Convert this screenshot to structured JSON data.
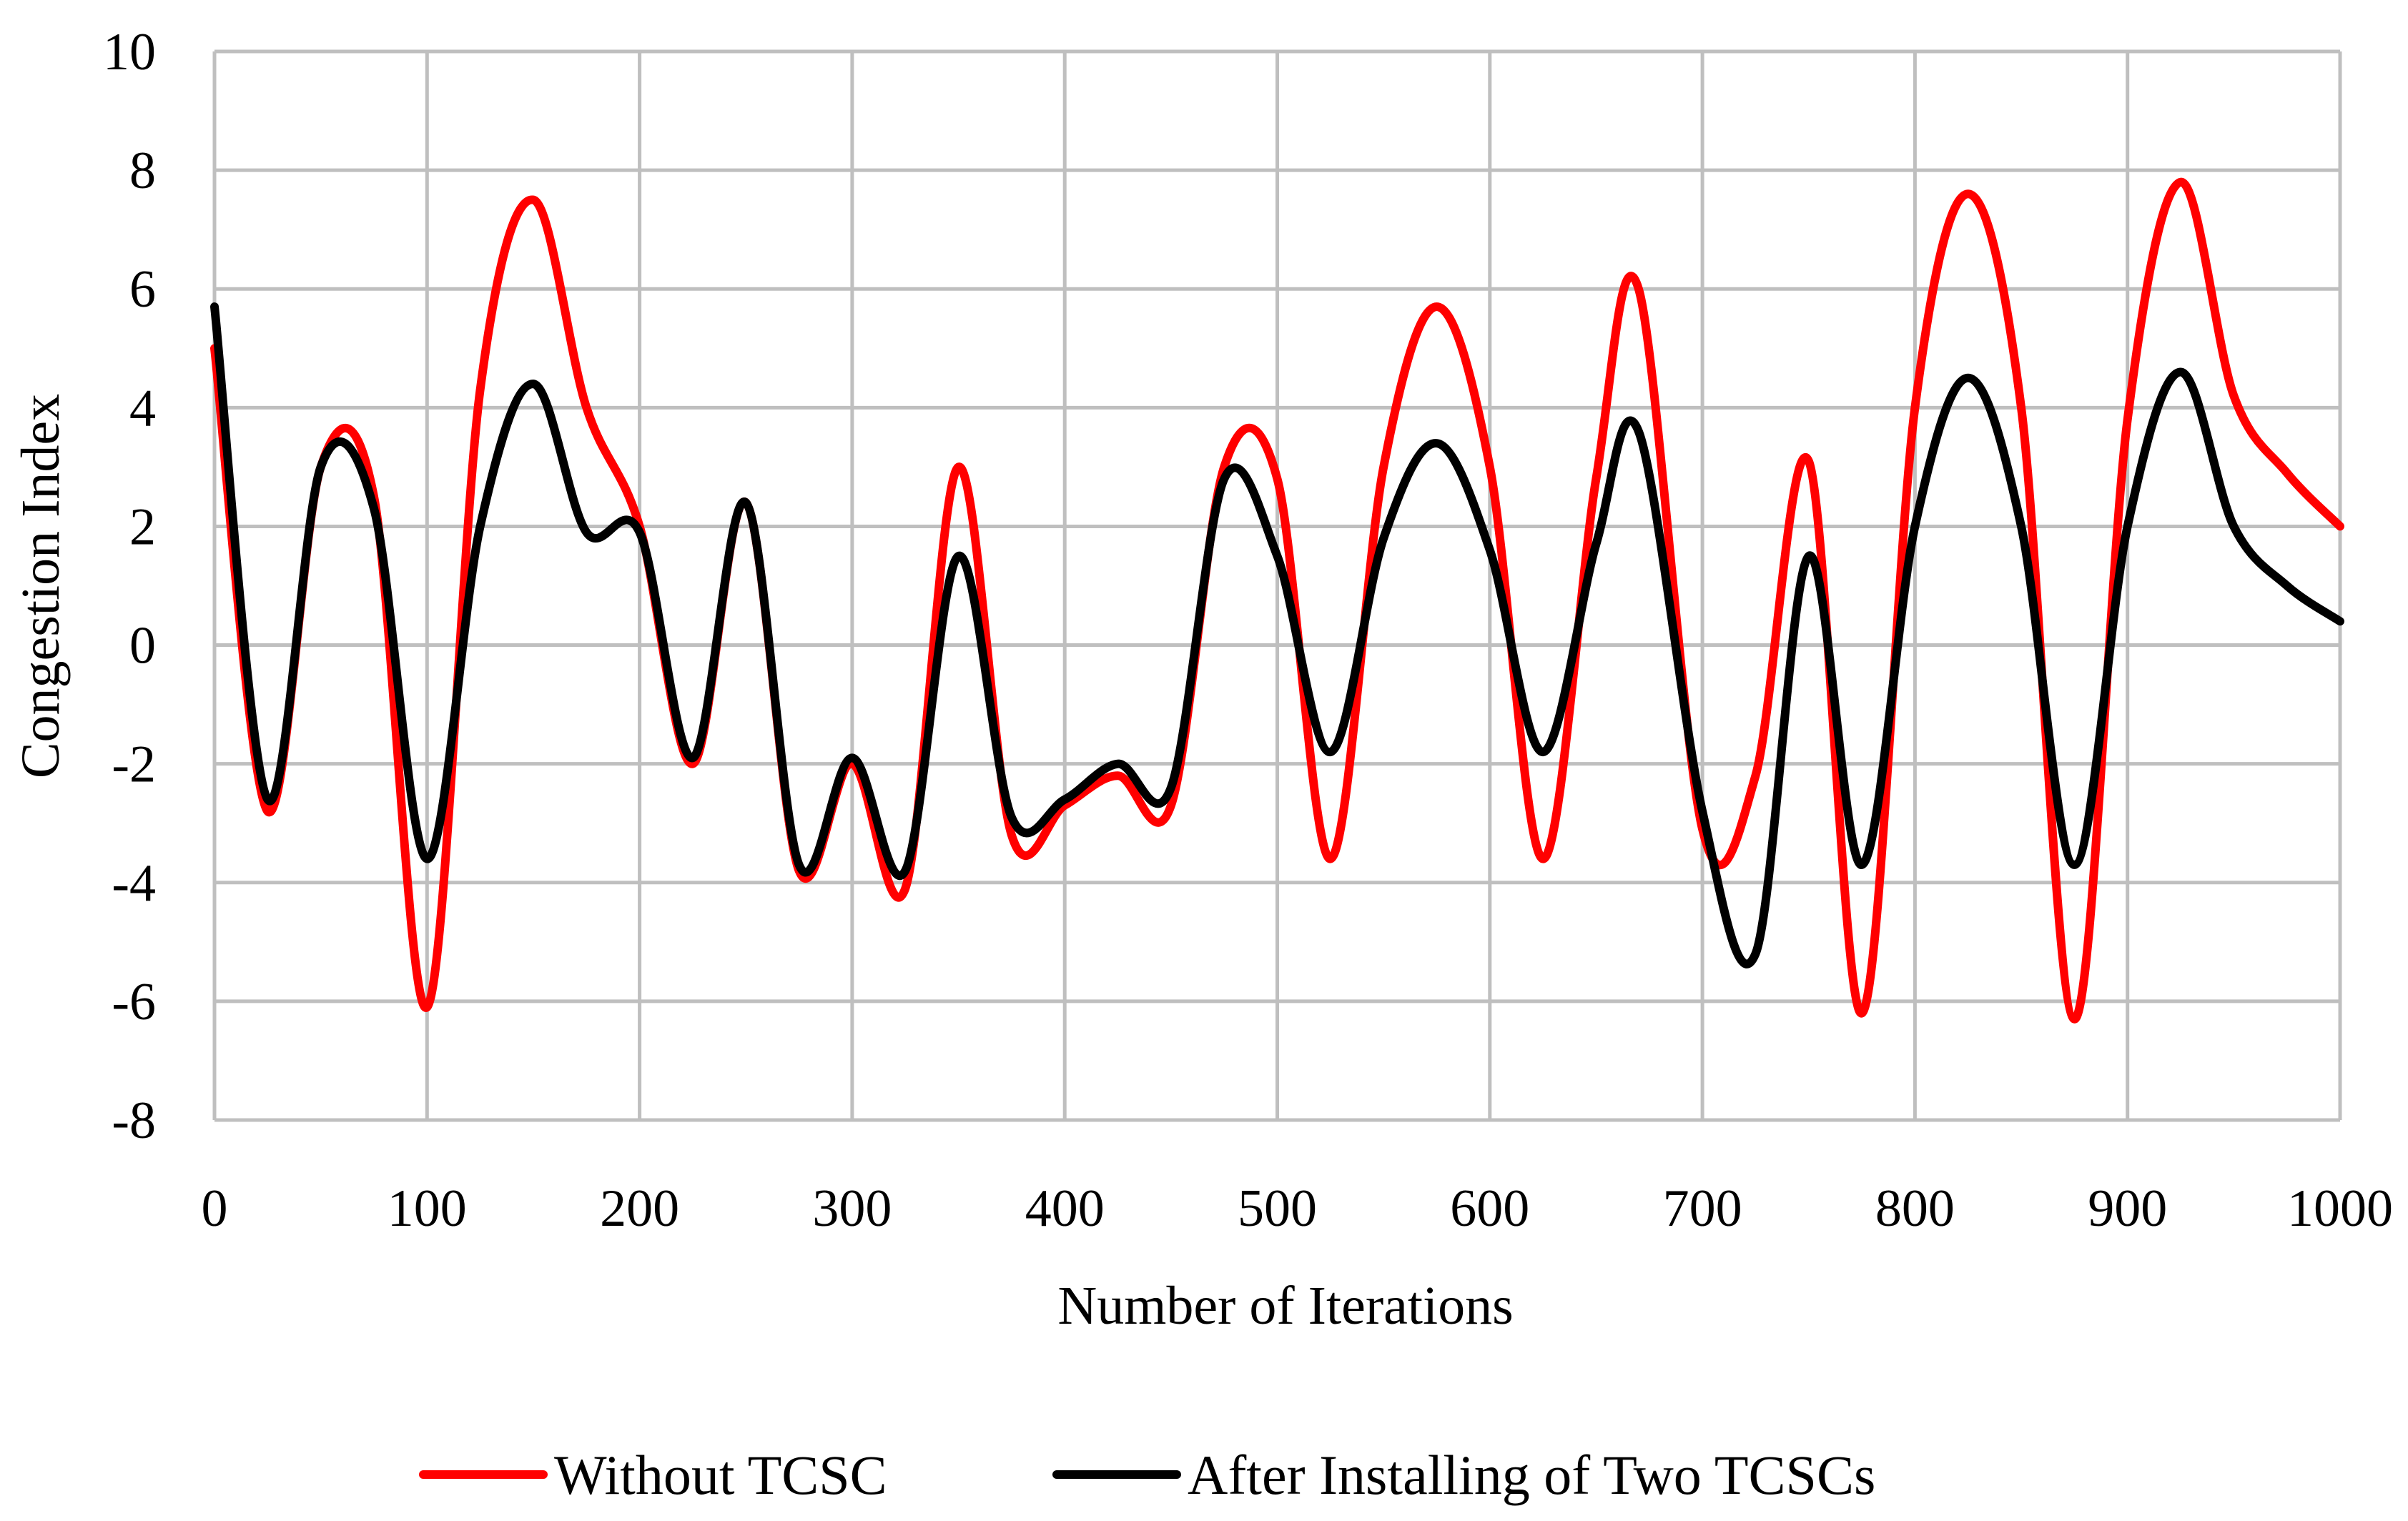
{
  "chart_data": {
    "type": "line",
    "title": "",
    "xlabel": "Number of Iterations",
    "ylabel": "Congestion Index",
    "xlim": [
      0,
      1000
    ],
    "ylim": [
      -8,
      10
    ],
    "x_ticks": [
      0,
      100,
      200,
      300,
      400,
      500,
      600,
      700,
      800,
      900,
      1000
    ],
    "y_ticks": [
      -8,
      -6,
      -4,
      -2,
      0,
      2,
      4,
      6,
      8,
      10
    ],
    "x_tick_labels": [
      "0",
      "100",
      "200",
      "300",
      "400",
      "500",
      "600",
      "700",
      "800",
      "900",
      "1000"
    ],
    "y_tick_labels": [
      "-8",
      "-6",
      "-4",
      "-2",
      "0",
      "2",
      "4",
      "6",
      "8",
      "10"
    ],
    "grid": true,
    "legend_position": "bottom-center",
    "series": [
      {
        "name": "Without TCSC",
        "color": "#ff0000",
        "points": [
          [
            0,
            5.0
          ],
          [
            25,
            -2.8
          ],
          [
            50,
            3.0
          ],
          [
            75,
            2.5
          ],
          [
            100,
            -6.1
          ],
          [
            125,
            4.3
          ],
          [
            150,
            7.5
          ],
          [
            175,
            4.0
          ],
          [
            200,
            2.0
          ],
          [
            225,
            -2.0
          ],
          [
            250,
            2.4
          ],
          [
            275,
            -3.8
          ],
          [
            300,
            -2.0
          ],
          [
            325,
            -4.1
          ],
          [
            350,
            3.0
          ],
          [
            375,
            -3.2
          ],
          [
            400,
            -2.7
          ],
          [
            425,
            -2.2
          ],
          [
            450,
            -2.7
          ],
          [
            475,
            3.0
          ],
          [
            500,
            2.8
          ],
          [
            525,
            -3.6
          ],
          [
            550,
            3.0
          ],
          [
            575,
            5.7
          ],
          [
            600,
            3.0
          ],
          [
            625,
            -3.6
          ],
          [
            650,
            2.8
          ],
          [
            670,
            6.0
          ],
          [
            700,
            -3.1
          ],
          [
            725,
            -2.2
          ],
          [
            750,
            3.1
          ],
          [
            775,
            -6.2
          ],
          [
            800,
            4.0
          ],
          [
            825,
            7.6
          ],
          [
            850,
            4.0
          ],
          [
            875,
            -6.3
          ],
          [
            900,
            3.8
          ],
          [
            925,
            7.8
          ],
          [
            950,
            4.2
          ],
          [
            975,
            2.9
          ],
          [
            1000,
            2.0
          ]
        ]
      },
      {
        "name": "After Installing of Two TCSCs",
        "color": "#000000",
        "points": [
          [
            0,
            5.7
          ],
          [
            25,
            -2.6
          ],
          [
            50,
            3.0
          ],
          [
            75,
            2.3
          ],
          [
            100,
            -3.6
          ],
          [
            125,
            2.0
          ],
          [
            150,
            4.4
          ],
          [
            175,
            1.9
          ],
          [
            200,
            1.9
          ],
          [
            225,
            -1.9
          ],
          [
            250,
            2.4
          ],
          [
            275,
            -3.7
          ],
          [
            300,
            -1.9
          ],
          [
            325,
            -3.8
          ],
          [
            350,
            1.5
          ],
          [
            375,
            -2.9
          ],
          [
            400,
            -2.6
          ],
          [
            425,
            -2.0
          ],
          [
            450,
            -2.4
          ],
          [
            475,
            2.8
          ],
          [
            500,
            1.5
          ],
          [
            525,
            -1.8
          ],
          [
            550,
            1.8
          ],
          [
            575,
            3.4
          ],
          [
            600,
            1.6
          ],
          [
            625,
            -1.8
          ],
          [
            650,
            1.7
          ],
          [
            670,
            3.6
          ],
          [
            700,
            -2.8
          ],
          [
            725,
            -5.2
          ],
          [
            750,
            1.5
          ],
          [
            775,
            -3.7
          ],
          [
            800,
            2.0
          ],
          [
            825,
            4.5
          ],
          [
            850,
            2.0
          ],
          [
            875,
            -3.7
          ],
          [
            900,
            2.0
          ],
          [
            925,
            4.6
          ],
          [
            950,
            2.0
          ],
          [
            975,
            1.0
          ],
          [
            1000,
            0.4
          ]
        ]
      }
    ]
  }
}
